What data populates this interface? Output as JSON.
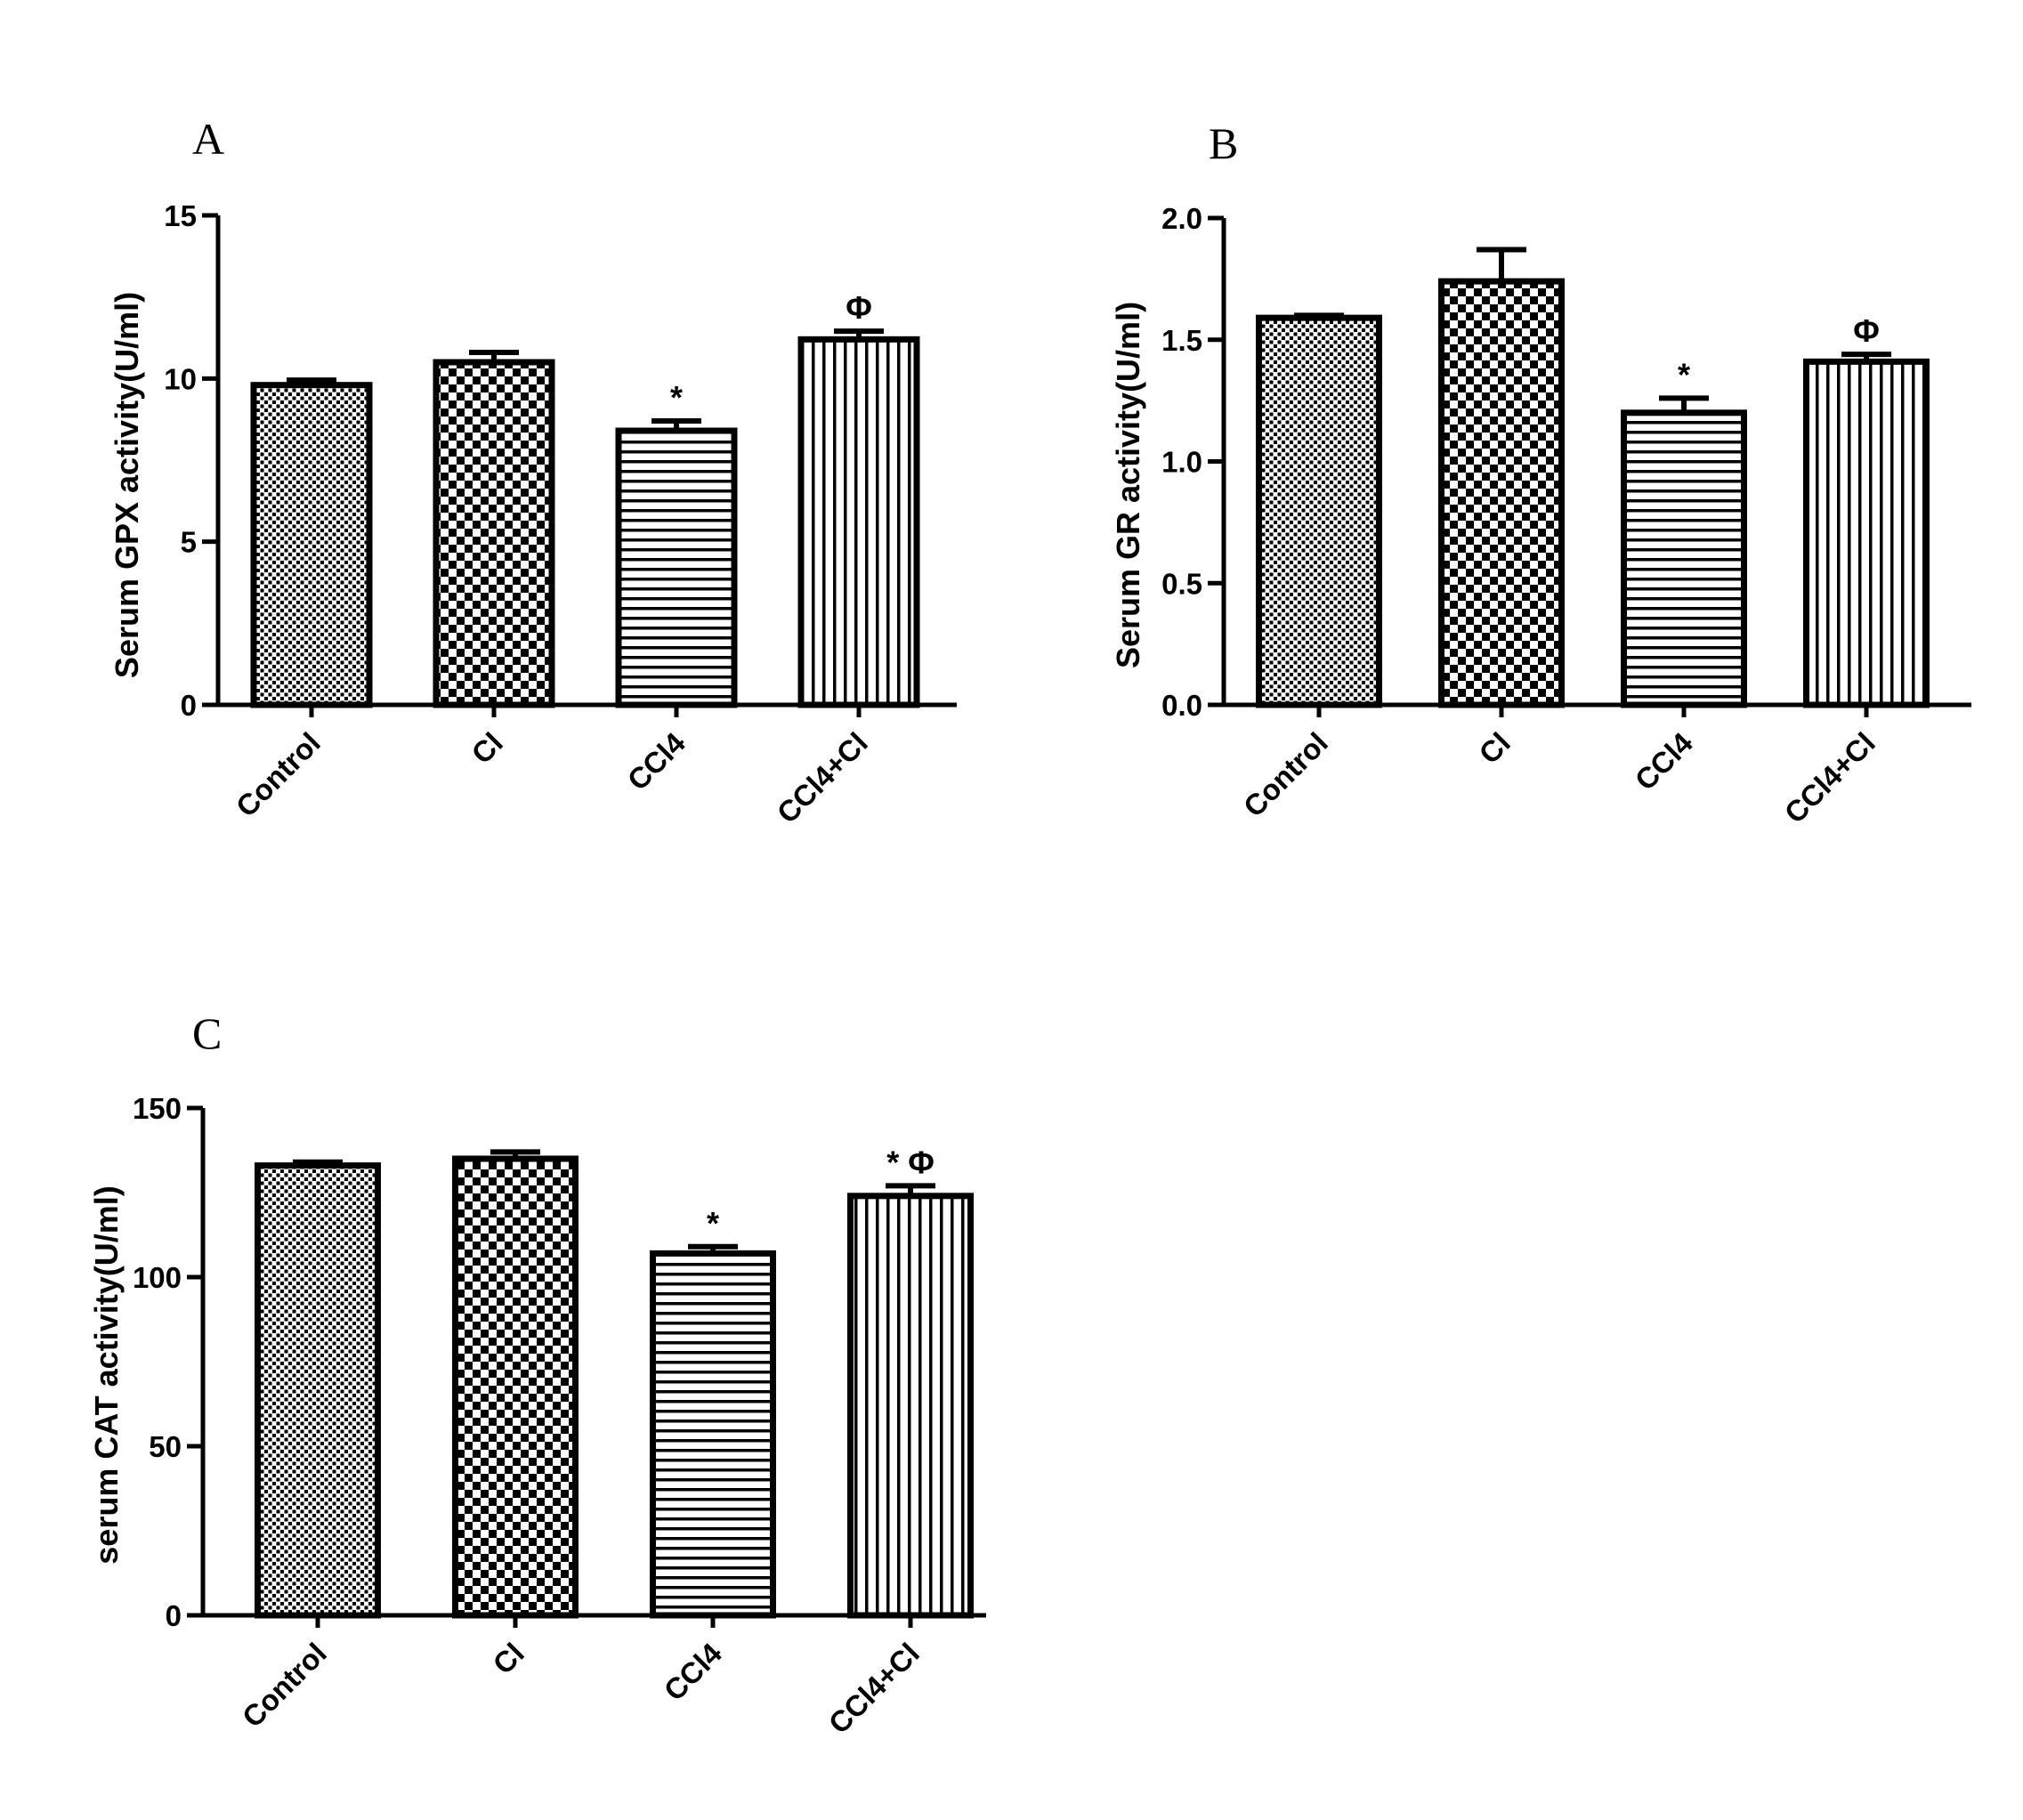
{
  "chart_data": [
    {
      "panel": "A",
      "type": "bar",
      "ylabel": "Serum GPX activity(U/ml)",
      "ylim": [
        0,
        15
      ],
      "yticks": [
        "0",
        "5",
        "10",
        "15"
      ],
      "categories": [
        "Control",
        "Cl",
        "CCl4",
        "CCl4+Cl"
      ],
      "values": [
        9.8,
        10.5,
        8.4,
        11.2
      ],
      "errors": [
        0.15,
        0.3,
        0.3,
        0.25
      ],
      "patterns": [
        "fine-dots",
        "checker",
        "horizontal-lines",
        "vertical-lines"
      ],
      "annotations": [
        "",
        "",
        "*",
        "Φ"
      ]
    },
    {
      "panel": "B",
      "type": "bar",
      "ylabel": "Serum GR activity(U/ml)",
      "ylim": [
        0,
        2.0
      ],
      "yticks": [
        "0.0",
        "0.5",
        "1.0",
        "1.5",
        "2.0"
      ],
      "categories": [
        "Control",
        "Cl",
        "CCl4",
        "CCl4+Cl"
      ],
      "values": [
        1.59,
        1.74,
        1.2,
        1.41
      ],
      "errors": [
        0.01,
        0.13,
        0.06,
        0.03
      ],
      "patterns": [
        "fine-dots",
        "checker",
        "horizontal-lines",
        "vertical-lines"
      ],
      "annotations": [
        "",
        "",
        "*",
        "Φ"
      ]
    },
    {
      "panel": "C",
      "type": "bar",
      "ylabel": "serum CAT activity(U/ml)",
      "ylim": [
        0,
        150
      ],
      "yticks": [
        "0",
        "50",
        "100",
        "150"
      ],
      "categories": [
        "Control",
        "Cl",
        "CCl4",
        "CCl4+Cl"
      ],
      "values": [
        133,
        135,
        107,
        124
      ],
      "errors": [
        1,
        2,
        2,
        3
      ],
      "patterns": [
        "fine-dots",
        "checker",
        "horizontal-lines",
        "vertical-lines"
      ],
      "annotations": [
        "",
        "",
        "*",
        "* Φ"
      ]
    }
  ]
}
